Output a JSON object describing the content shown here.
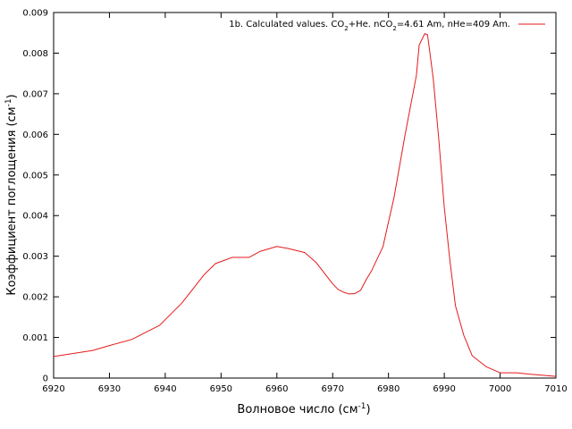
{
  "chart_data": {
    "type": "line",
    "title": "",
    "xlabel": "Волновое число (см",
    "xlabel_sup": "-1",
    "xlabel_suffix": ")",
    "ylabel": "Коэффициент поглощения (см",
    "ylabel_sup": "-1",
    "ylabel_suffix": ")",
    "xlim": [
      6920,
      7010
    ],
    "ylim": [
      0,
      0.009
    ],
    "xticks": [
      6920,
      6930,
      6940,
      6950,
      6960,
      6970,
      6980,
      6990,
      7000,
      7010
    ],
    "yticks": [
      0,
      0.001,
      0.002,
      0.003,
      0.004,
      0.005,
      0.006,
      0.007,
      0.008,
      0.009
    ],
    "ytick_labels": [
      "0",
      "0.001",
      "0.002",
      "0.003",
      "0.004",
      "0.005",
      "0.006",
      "0.007",
      "0.008",
      "0.009"
    ],
    "grid": false,
    "legend_position": "top-right",
    "legend": {
      "prefix": "1b. Calculated values. CO",
      "sub1": "2",
      "middle": "+He. nCO",
      "sub2": "2",
      "suffix": "=4.61 Am, nHe=409 Am."
    },
    "series": [
      {
        "color": "#e41a1c",
        "x": [
          6920,
          6927,
          6930,
          6934,
          6939,
          6943,
          6947,
          6949,
          6952,
          6955,
          6957,
          6960,
          6962,
          6965,
          6967,
          6970,
          6971,
          6972,
          6973,
          6974,
          6975,
          6976,
          6977,
          6979,
          6981,
          6983,
          6985,
          6985.5,
          6986.5,
          6987,
          6988,
          6989,
          6990,
          6991,
          6992,
          6993.5,
          6995,
          6997.5,
          7000,
          7003,
          7005,
          7010
        ],
        "y": [
          0.00053,
          0.00068,
          0.0008,
          0.00095,
          0.0013,
          0.00185,
          0.00255,
          0.00282,
          0.00297,
          0.00297,
          0.00312,
          0.00324,
          0.00319,
          0.00309,
          0.00285,
          0.00232,
          0.00218,
          0.00211,
          0.00207,
          0.00208,
          0.00216,
          0.00242,
          0.00265,
          0.00323,
          0.00445,
          0.00601,
          0.00745,
          0.0082,
          0.00848,
          0.00845,
          0.0074,
          0.0059,
          0.0042,
          0.0029,
          0.00178,
          0.00105,
          0.00055,
          0.00028,
          0.00013,
          0.00013,
          0.0001,
          4e-05
        ]
      }
    ]
  }
}
